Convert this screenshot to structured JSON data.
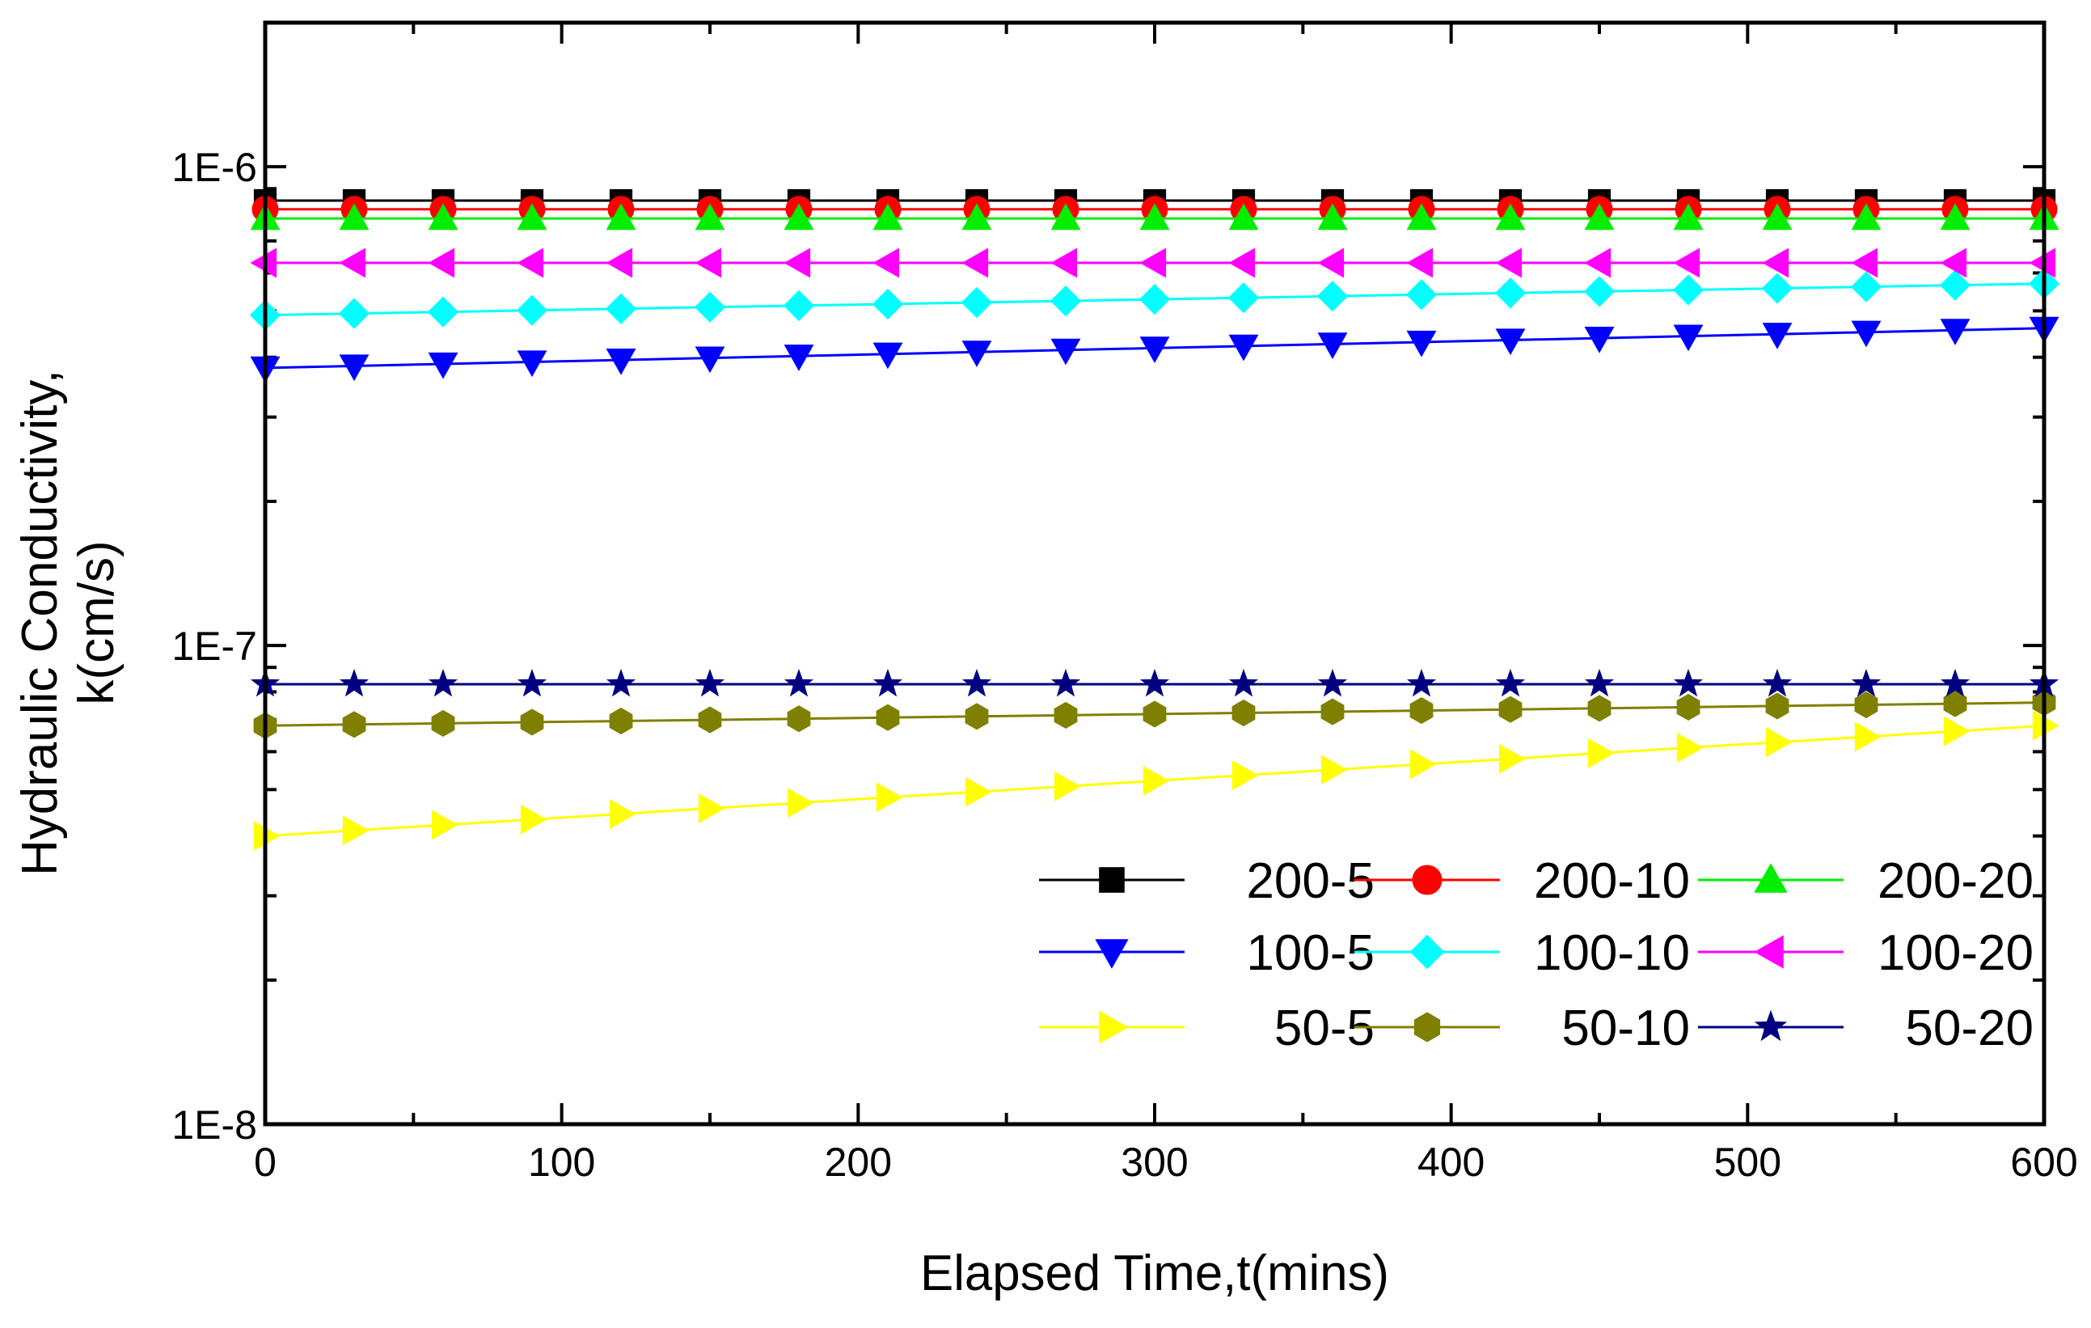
{
  "chart_data": {
    "type": "line",
    "title": "",
    "xlabel": "Elapsed Time,t(mins)",
    "ylabel_line1": "Hydraulic Conductivity,",
    "ylabel_line2": "k(cm/s)",
    "xlim": [
      0,
      600
    ],
    "ylim": [
      1e-08,
      2e-06
    ],
    "yscale": "log",
    "x_ticks": [
      0,
      100,
      200,
      300,
      400,
      500,
      600
    ],
    "x_tick_labels": [
      "0",
      "100",
      "200",
      "300",
      "400",
      "500",
      "600"
    ],
    "y_ticks": [
      1e-08,
      1e-07,
      1e-06
    ],
    "y_tick_labels": [
      "1E-8",
      "1E-7",
      "1E-6"
    ],
    "x": [
      0,
      30,
      60,
      90,
      120,
      150,
      180,
      210,
      240,
      270,
      300,
      330,
      360,
      390,
      420,
      450,
      480,
      510,
      540,
      570,
      600
    ],
    "legend_position": "lower-right",
    "series": [
      {
        "name": "200-5",
        "color": "#000000",
        "marker": "square",
        "start": 8.5e-07,
        "end": 8.5e-07
      },
      {
        "name": "200-10",
        "color": "#ff0000",
        "marker": "circle",
        "start": 8.15e-07,
        "end": 8.15e-07
      },
      {
        "name": "200-20",
        "color": "#00ee00",
        "marker": "triangle-up",
        "start": 7.8e-07,
        "end": 7.8e-07
      },
      {
        "name": "100-5",
        "color": "#0000ff",
        "marker": "triangle-down",
        "start": 3.8e-07,
        "end": 4.6e-07
      },
      {
        "name": "100-10",
        "color": "#00ffff",
        "marker": "diamond",
        "start": 4.9e-07,
        "end": 5.7e-07
      },
      {
        "name": "100-20",
        "color": "#ff00ff",
        "marker": "triangle-left",
        "start": 6.3e-07,
        "end": 6.3e-07
      },
      {
        "name": "50-5",
        "color": "#ffff00",
        "marker": "triangle-right",
        "start": 4e-08,
        "end": 6.8e-08
      },
      {
        "name": "50-10",
        "color": "#808000",
        "marker": "hexagon",
        "start": 6.8e-08,
        "end": 7.6e-08
      },
      {
        "name": "50-20",
        "color": "#000080",
        "marker": "star",
        "start": 8.3e-08,
        "end": 8.3e-08
      }
    ]
  }
}
